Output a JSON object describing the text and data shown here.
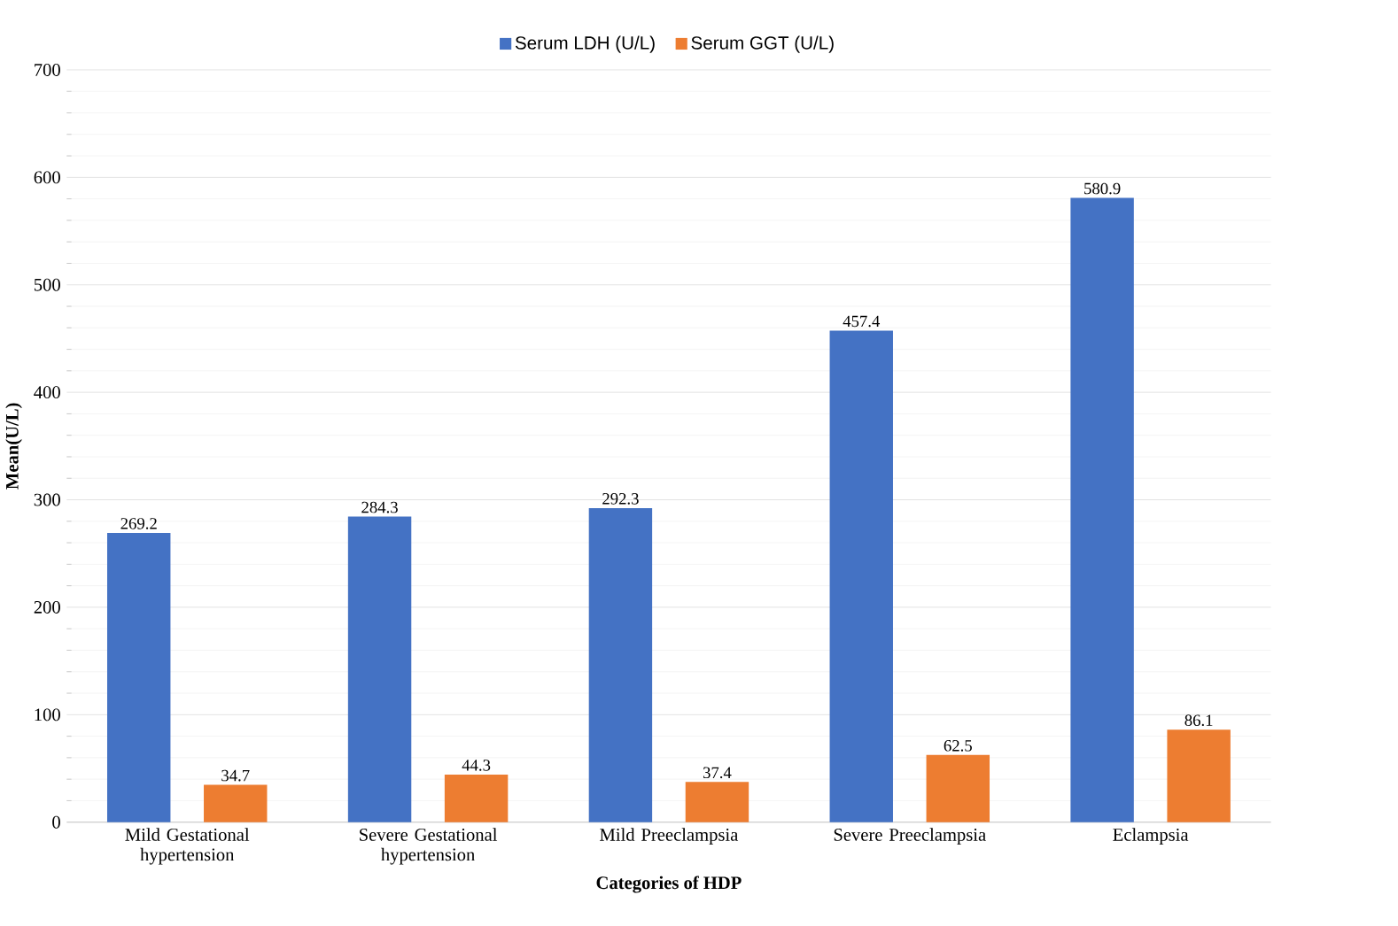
{
  "chart_data": {
    "type": "bar",
    "xlabel": "Categories of HDP",
    "ylabel": "Mean(U/L)",
    "categories": [
      "Mild Gestational hypertension",
      "Severe Gestational hypertension",
      "Mild Preeclampsia",
      "Severe Preeclampsia",
      "Eclampsia"
    ],
    "series": [
      {
        "name": "Serum LDH (U/L)",
        "color": "#4472c4",
        "values": [
          269.2,
          284.3,
          292.3,
          457.4,
          580.9
        ]
      },
      {
        "name": "Serum GGT (U/L)",
        "color": "#ed7d31",
        "values": [
          34.7,
          44.3,
          37.4,
          62.5,
          86.1
        ]
      }
    ],
    "ylim": [
      0,
      700
    ],
    "yticks": [
      0,
      100,
      200,
      300,
      400,
      500,
      600,
      700
    ],
    "grid": "y",
    "legend": "top",
    "data_labels": true
  }
}
